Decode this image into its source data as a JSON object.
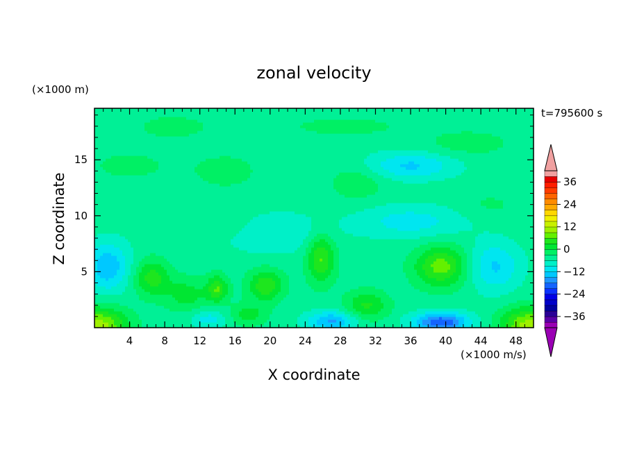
{
  "chart_data": {
    "type": "heatmap",
    "title": "zonal velocity",
    "xlabel": "X coordinate",
    "ylabel": "Z coordinate",
    "x_units": "(×1000 m/s)",
    "y_units": "(×1000 m)",
    "time_label": "t=795600 s",
    "xlim": [
      0,
      50
    ],
    "ylim": [
      0,
      19.6
    ],
    "x_ticks": [
      4,
      8,
      12,
      16,
      20,
      24,
      28,
      32,
      36,
      40,
      44,
      48
    ],
    "y_ticks": [
      5,
      10,
      15
    ],
    "colorbar": {
      "levels": [
        -42,
        -39,
        -36,
        -33,
        -30,
        -27,
        -24,
        -21,
        -18,
        -15,
        -12,
        -9,
        -6,
        -3,
        0,
        3,
        6,
        9,
        12,
        15,
        18,
        21,
        24,
        27,
        30,
        33,
        36,
        39,
        42
      ],
      "colors": [
        "#9a00b4",
        "#5a00a8",
        "#2a0096",
        "#0000a0",
        "#0000c8",
        "#0000e6",
        "#0a32ff",
        "#1464ff",
        "#1e96ff",
        "#00c8ff",
        "#00e6f0",
        "#00f0c8",
        "#00f096",
        "#00f064",
        "#00e632",
        "#1ee61e",
        "#64f000",
        "#a0f000",
        "#c8f000",
        "#f0f000",
        "#ffd700",
        "#ffaa00",
        "#ff8c00",
        "#ff6400",
        "#ff3c00",
        "#ff1e00",
        "#e60000",
        "#f0a0a0"
      ],
      "tick_values": [
        36,
        24,
        12,
        0,
        -12,
        -24,
        -36
      ],
      "tick_labels": [
        "36",
        "24",
        "12",
        "0",
        "−12",
        "−24",
        "−36"
      ],
      "under_color": "#9a00b4",
      "over_color": "#f0a0a0"
    },
    "features": [
      {
        "x": 0.5,
        "z": 0.2,
        "value": 15,
        "sx": 3.2,
        "sz": 1.6
      },
      {
        "x": 49.5,
        "z": 0.2,
        "value": 15,
        "sx": 3.2,
        "sz": 1.6
      },
      {
        "x": 1.5,
        "z": 5.5,
        "value": -10,
        "sx": 2.5,
        "sz": 2.2
      },
      {
        "x": 45.5,
        "z": 5.5,
        "value": -8,
        "sx": 3.0,
        "sz": 2.2
      },
      {
        "x": 6.5,
        "z": 4.5,
        "value": 9,
        "sx": 2.0,
        "sz": 1.6
      },
      {
        "x": 10.5,
        "z": 3.0,
        "value": 6,
        "sx": 2.5,
        "sz": 1.5
      },
      {
        "x": 14.0,
        "z": 3.5,
        "value": 10,
        "sx": 1.2,
        "sz": 1.2
      },
      {
        "x": 19.5,
        "z": 3.8,
        "value": 10,
        "sx": 2.0,
        "sz": 1.4
      },
      {
        "x": 17.5,
        "z": 1.2,
        "value": 6,
        "sx": 2.0,
        "sz": 1.0
      },
      {
        "x": 25.8,
        "z": 6.3,
        "value": 11,
        "sx": 1.6,
        "sz": 2.2
      },
      {
        "x": 31.0,
        "z": 2.0,
        "value": 8,
        "sx": 2.4,
        "sz": 1.3
      },
      {
        "x": 39.5,
        "z": 5.5,
        "value": 12,
        "sx": 3.0,
        "sz": 1.8
      },
      {
        "x": 39.5,
        "z": 0.5,
        "value": -16,
        "sx": 3.2,
        "sz": 0.9
      },
      {
        "x": 27.0,
        "z": 0.6,
        "value": -11,
        "sx": 2.8,
        "sz": 0.9
      },
      {
        "x": 13.0,
        "z": 0.8,
        "value": -6,
        "sx": 2.0,
        "sz": 0.8
      },
      {
        "x": 4.0,
        "z": 14.5,
        "value": 2,
        "sx": 6.0,
        "sz": 1.8
      },
      {
        "x": 15.0,
        "z": 14.0,
        "value": 3,
        "sx": 3.5,
        "sz": 1.5
      },
      {
        "x": 30.0,
        "z": 13.0,
        "value": 4,
        "sx": 3.0,
        "sz": 1.5
      },
      {
        "x": 42.5,
        "z": 16.5,
        "value": 3,
        "sx": 5.0,
        "sz": 1.2
      },
      {
        "x": 9.0,
        "z": 18.0,
        "value": 3,
        "sx": 4.0,
        "sz": 1.0
      },
      {
        "x": 28.5,
        "z": 18.0,
        "value": 3,
        "sx": 6.0,
        "sz": 0.8
      },
      {
        "x": 36.0,
        "z": 14.5,
        "value": -8,
        "sx": 5.0,
        "sz": 1.2
      },
      {
        "x": 20.5,
        "z": 8.5,
        "value": -5,
        "sx": 6.0,
        "sz": 1.8
      },
      {
        "x": 36.0,
        "z": 9.5,
        "value": -6,
        "sx": 6.0,
        "sz": 1.5
      },
      {
        "x": 16.0,
        "z": 9.0,
        "value": 2,
        "sx": 5.0,
        "sz": 1.2
      },
      {
        "x": 45.0,
        "z": 11.0,
        "value": 2,
        "sx": 3.5,
        "sz": 1.2
      }
    ],
    "base_value": -4.5
  }
}
